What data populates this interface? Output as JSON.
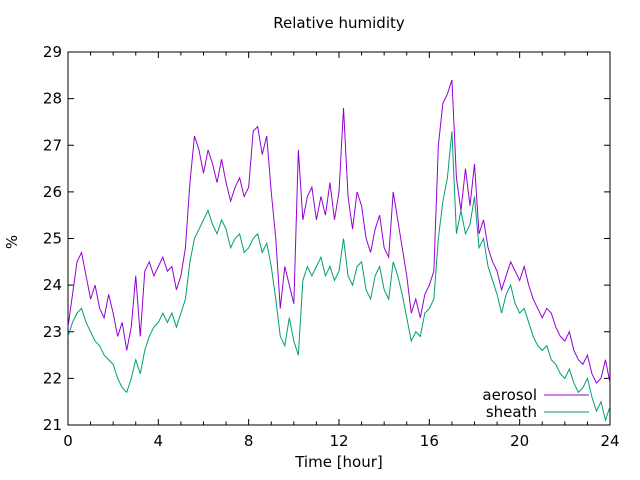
{
  "window": {
    "background": "#ffffff"
  },
  "colors": {
    "background": "#ffffff",
    "axis": "#000000",
    "text": "#000000"
  },
  "chart_data": {
    "type": "line",
    "title": "Relative humidity",
    "xlabel": "Time [hour]",
    "ylabel": "%",
    "xlim": [
      0,
      24
    ],
    "ylim": [
      21,
      29
    ],
    "grid": false,
    "x_major_ticks": [
      0,
      4,
      8,
      12,
      16,
      20,
      24
    ],
    "x_major_tick_labels": [
      "0",
      "4",
      "8",
      "12",
      "16",
      "20",
      "24"
    ],
    "x_minor_step": 1,
    "y_major_ticks": [
      21,
      22,
      23,
      24,
      25,
      26,
      27,
      28,
      29
    ],
    "y_major_tick_labels": [
      "21",
      "22",
      "23",
      "24",
      "25",
      "26",
      "27",
      "28",
      "29"
    ],
    "legend": {
      "position": "inside-bottom-right",
      "entries": [
        "aerosol",
        "sheath"
      ]
    },
    "x": [
      0,
      0.2,
      0.4,
      0.6,
      0.8,
      1,
      1.2,
      1.4,
      1.6,
      1.8,
      2,
      2.2,
      2.4,
      2.6,
      2.8,
      3,
      3.2,
      3.4,
      3.6,
      3.8,
      4,
      4.2,
      4.4,
      4.6,
      4.8,
      5,
      5.2,
      5.4,
      5.6,
      5.8,
      6,
      6.2,
      6.4,
      6.6,
      6.8,
      7,
      7.2,
      7.4,
      7.6,
      7.8,
      8,
      8.2,
      8.4,
      8.6,
      8.8,
      9,
      9.2,
      9.4,
      9.6,
      9.8,
      10,
      10.2,
      10.4,
      10.6,
      10.8,
      11,
      11.2,
      11.4,
      11.6,
      11.8,
      12,
      12.2,
      12.4,
      12.6,
      12.8,
      13,
      13.2,
      13.4,
      13.6,
      13.8,
      14,
      14.2,
      14.4,
      14.6,
      14.8,
      15,
      15.2,
      15.4,
      15.6,
      15.8,
      16,
      16.2,
      16.4,
      16.6,
      16.8,
      17,
      17.2,
      17.4,
      17.6,
      17.8,
      18,
      18.2,
      18.4,
      18.6,
      18.8,
      19,
      19.2,
      19.4,
      19.6,
      19.8,
      20,
      20.2,
      20.4,
      20.6,
      20.8,
      21,
      21.2,
      21.4,
      21.6,
      21.8,
      22,
      22.2,
      22.4,
      22.6,
      22.8,
      23,
      23.2,
      23.4,
      23.6,
      23.8,
      24
    ],
    "series": [
      {
        "name": "aerosol",
        "color": "#9400d3",
        "values": [
          23.1,
          23.8,
          24.5,
          24.7,
          24.2,
          23.7,
          24.0,
          23.5,
          23.3,
          23.8,
          23.4,
          22.9,
          23.2,
          22.6,
          23.1,
          24.2,
          22.9,
          24.3,
          24.5,
          24.2,
          24.4,
          24.6,
          24.3,
          24.4,
          23.9,
          24.2,
          24.8,
          26.2,
          27.2,
          26.9,
          26.4,
          26.9,
          26.6,
          26.2,
          26.7,
          26.2,
          25.8,
          26.1,
          26.3,
          25.9,
          26.1,
          27.3,
          27.4,
          26.8,
          27.2,
          26.0,
          25.0,
          23.5,
          24.4,
          24.0,
          23.6,
          26.9,
          25.4,
          25.9,
          26.1,
          25.4,
          25.9,
          25.5,
          26.2,
          25.4,
          26.0,
          27.8,
          25.9,
          25.2,
          26.0,
          25.7,
          25.0,
          24.7,
          25.2,
          25.5,
          24.8,
          24.6,
          26.0,
          25.4,
          24.8,
          24.2,
          23.4,
          23.7,
          23.3,
          23.8,
          24.0,
          24.3,
          27.0,
          27.9,
          28.1,
          28.4,
          26.3,
          25.6,
          26.5,
          25.7,
          26.6,
          25.1,
          25.4,
          24.8,
          24.5,
          24.3,
          23.9,
          24.2,
          24.5,
          24.3,
          24.1,
          24.4,
          24.0,
          23.7,
          23.5,
          23.3,
          23.5,
          23.4,
          23.1,
          22.9,
          22.8,
          23.0,
          22.6,
          22.4,
          22.3,
          22.5,
          22.1,
          21.9,
          22.0,
          22.4,
          21.9
        ]
      },
      {
        "name": "sheath",
        "color": "#009e73",
        "values": [
          22.9,
          23.2,
          23.4,
          23.5,
          23.2,
          23.0,
          22.8,
          22.7,
          22.5,
          22.4,
          22.3,
          22.0,
          21.8,
          21.7,
          22.0,
          22.4,
          22.1,
          22.6,
          22.9,
          23.1,
          23.2,
          23.4,
          23.2,
          23.4,
          23.1,
          23.4,
          23.7,
          24.5,
          25.0,
          25.2,
          25.4,
          25.6,
          25.3,
          25.1,
          25.4,
          25.2,
          24.8,
          25.0,
          25.1,
          24.7,
          24.8,
          25.0,
          25.1,
          24.7,
          24.9,
          24.4,
          23.7,
          22.9,
          22.7,
          23.3,
          22.8,
          22.5,
          24.1,
          24.4,
          24.2,
          24.4,
          24.6,
          24.2,
          24.4,
          24.1,
          24.3,
          25.0,
          24.2,
          24.0,
          24.4,
          24.5,
          23.9,
          23.7,
          24.2,
          24.4,
          23.9,
          23.7,
          24.5,
          24.2,
          23.8,
          23.3,
          22.8,
          23.0,
          22.9,
          23.4,
          23.5,
          23.7,
          25.0,
          25.8,
          26.3,
          27.3,
          25.1,
          25.6,
          25.1,
          25.3,
          25.9,
          24.8,
          25.0,
          24.4,
          24.1,
          23.8,
          23.4,
          23.8,
          24.0,
          23.6,
          23.4,
          23.5,
          23.2,
          22.9,
          22.7,
          22.6,
          22.7,
          22.4,
          22.3,
          22.1,
          22.0,
          22.2,
          21.9,
          21.7,
          21.8,
          22.0,
          21.6,
          21.3,
          21.5,
          21.1,
          21.4
        ]
      }
    ]
  }
}
